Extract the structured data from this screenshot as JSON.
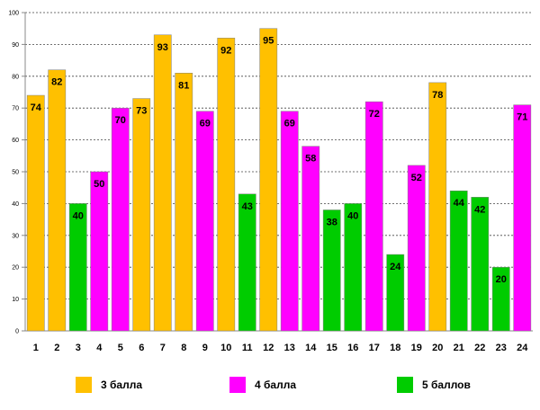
{
  "chart_data": {
    "type": "bar",
    "title": "",
    "xlabel": "",
    "ylabel": "",
    "ylim": [
      0,
      100
    ],
    "ytick_step": 10,
    "grid": true,
    "categories": [
      "1",
      "2",
      "3",
      "4",
      "5",
      "6",
      "7",
      "8",
      "9",
      "10",
      "11",
      "12",
      "13",
      "14",
      "15",
      "16",
      "17",
      "18",
      "19",
      "20",
      "21",
      "22",
      "23",
      "24"
    ],
    "values": [
      74,
      82,
      40,
      50,
      70,
      73,
      93,
      81,
      69,
      92,
      43,
      95,
      69,
      58,
      38,
      40,
      72,
      24,
      52,
      78,
      44,
      42,
      20,
      71
    ],
    "groups": [
      "3 балла",
      "3 балла",
      "5 баллов",
      "4 балла",
      "4 балла",
      "3 балла",
      "3 балла",
      "3 балла",
      "4 балла",
      "3 балла",
      "5 баллов",
      "3 балла",
      "4 балла",
      "4 балла",
      "5 баллов",
      "5 баллов",
      "4 балла",
      "5 баллов",
      "4 балла",
      "3 балла",
      "5 баллов",
      "5 баллов",
      "5 баллов",
      "4 балла"
    ],
    "legend": [
      {
        "name": "3 балла",
        "color": "#FFC000"
      },
      {
        "name": "4 балла",
        "color": "#FF00FF"
      },
      {
        "name": "5 баллов",
        "color": "#00CC00"
      }
    ],
    "legend_position": "bottom"
  }
}
